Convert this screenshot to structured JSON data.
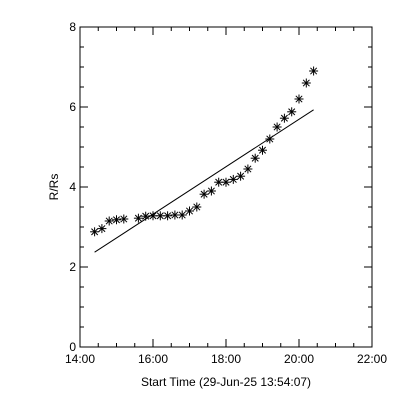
{
  "chart_data": {
    "type": "scatter",
    "xlabel": "Start Time (29-Jun-25 13:54:07)",
    "ylabel": "R/Rs",
    "xlim": [
      14.0,
      22.0
    ],
    "ylim": [
      0,
      8
    ],
    "x_ticks": [
      {
        "value": 14,
        "label": "14:00"
      },
      {
        "value": 16,
        "label": "16:00"
      },
      {
        "value": 18,
        "label": "18:00"
      },
      {
        "value": 20,
        "label": "20:00"
      },
      {
        "value": 22,
        "label": "22:00"
      }
    ],
    "y_ticks": [
      {
        "value": 0,
        "label": "0"
      },
      {
        "value": 2,
        "label": "2"
      },
      {
        "value": 4,
        "label": "4"
      },
      {
        "value": 6,
        "label": "6"
      },
      {
        "value": 8,
        "label": "8"
      }
    ],
    "grid": false,
    "marker": "asterisk",
    "color": "#000000",
    "series": [
      {
        "type": "scatter",
        "points": [
          {
            "x": 14.4,
            "y": 2.88
          },
          {
            "x": 14.6,
            "y": 2.96
          },
          {
            "x": 14.8,
            "y": 3.15
          },
          {
            "x": 15.0,
            "y": 3.18
          },
          {
            "x": 15.2,
            "y": 3.2
          },
          {
            "x": 15.6,
            "y": 3.22
          },
          {
            "x": 15.8,
            "y": 3.27
          },
          {
            "x": 16.0,
            "y": 3.28
          },
          {
            "x": 16.2,
            "y": 3.28
          },
          {
            "x": 16.4,
            "y": 3.28
          },
          {
            "x": 16.6,
            "y": 3.3
          },
          {
            "x": 16.8,
            "y": 3.3
          },
          {
            "x": 17.0,
            "y": 3.4
          },
          {
            "x": 17.2,
            "y": 3.5
          },
          {
            "x": 17.4,
            "y": 3.82
          },
          {
            "x": 17.6,
            "y": 3.9
          },
          {
            "x": 17.8,
            "y": 4.12
          },
          {
            "x": 18.0,
            "y": 4.12
          },
          {
            "x": 18.2,
            "y": 4.19
          },
          {
            "x": 18.4,
            "y": 4.27
          },
          {
            "x": 18.6,
            "y": 4.45
          },
          {
            "x": 18.8,
            "y": 4.72
          },
          {
            "x": 19.0,
            "y": 4.92
          },
          {
            "x": 19.2,
            "y": 5.2
          },
          {
            "x": 19.4,
            "y": 5.5
          },
          {
            "x": 19.6,
            "y": 5.72
          },
          {
            "x": 19.8,
            "y": 5.88
          },
          {
            "x": 20.0,
            "y": 6.2
          },
          {
            "x": 20.2,
            "y": 6.6
          },
          {
            "x": 20.4,
            "y": 6.9
          }
        ]
      },
      {
        "type": "line",
        "points": [
          {
            "x": 14.4,
            "y": 2.37
          },
          {
            "x": 20.4,
            "y": 5.93
          }
        ]
      }
    ]
  }
}
